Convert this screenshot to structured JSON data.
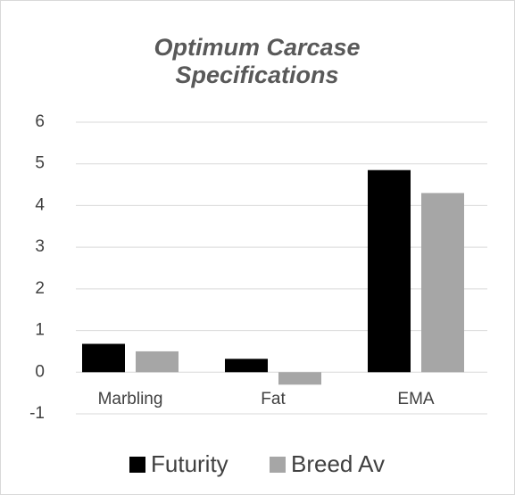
{
  "chart_data": {
    "type": "bar",
    "title": "Optimum Carcase Specifications",
    "categories": [
      "Marbling",
      "Fat",
      "EMA"
    ],
    "series": [
      {
        "name": "Futurity",
        "color": "#000000",
        "values": [
          0.68,
          0.32,
          4.85
        ]
      },
      {
        "name": "Breed Av",
        "color": "#a6a6a6",
        "values": [
          0.5,
          -0.3,
          4.3
        ]
      }
    ],
    "ylim": [
      -1,
      6
    ],
    "yticks": [
      -1,
      0,
      1,
      2,
      3,
      4,
      5,
      6
    ],
    "grid": true,
    "legend": "bottom"
  }
}
